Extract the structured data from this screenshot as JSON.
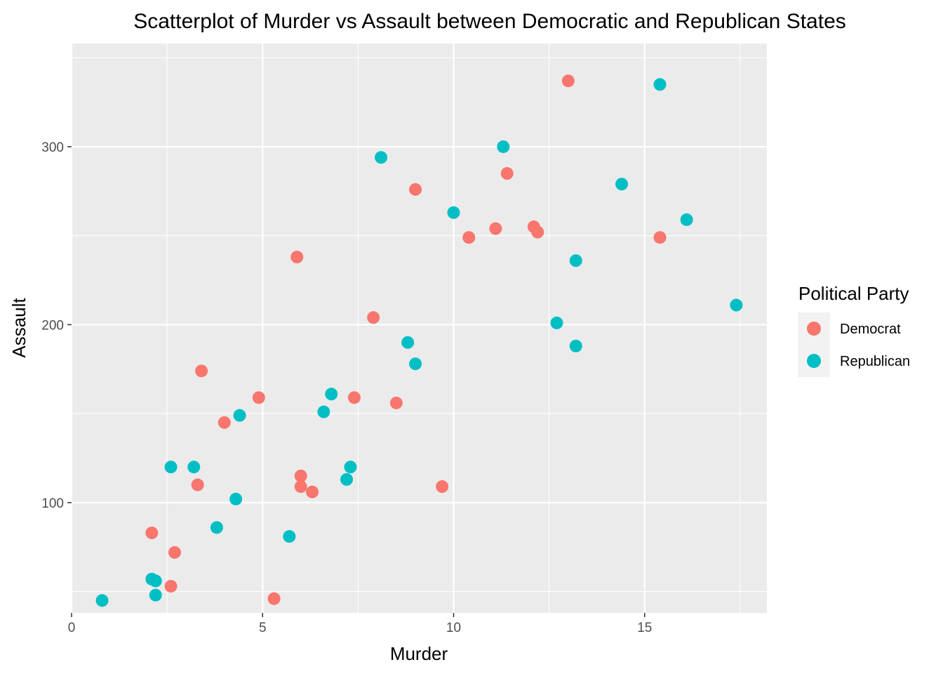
{
  "chart_data": {
    "type": "scatter",
    "title": "Scatterplot of Murder vs Assault between Democratic and Republican States",
    "xlabel": "Murder",
    "ylabel": "Assault",
    "xlim": [
      0,
      18.2
    ],
    "ylim": [
      38,
      358
    ],
    "x_ticks": [
      0,
      5,
      10,
      15
    ],
    "x_tick_labels": [
      "0",
      "5",
      "10",
      "15"
    ],
    "y_ticks": [
      100,
      200,
      300
    ],
    "y_tick_labels": [
      "100",
      "200",
      "300"
    ],
    "grid": true,
    "legend": {
      "title": "Political Party",
      "position": "right"
    },
    "series": [
      {
        "name": "Democrat",
        "color": "#F8766D",
        "points": [
          [
            13.0,
            337
          ],
          [
            11.4,
            285
          ],
          [
            9.0,
            276
          ],
          [
            10.4,
            249
          ],
          [
            11.1,
            254
          ],
          [
            12.1,
            255
          ],
          [
            12.2,
            252
          ],
          [
            15.4,
            249
          ],
          [
            5.9,
            238
          ],
          [
            7.9,
            204
          ],
          [
            3.4,
            174
          ],
          [
            4.9,
            159
          ],
          [
            7.4,
            159
          ],
          [
            8.5,
            156
          ],
          [
            4.0,
            145
          ],
          [
            3.3,
            110
          ],
          [
            6.0,
            115
          ],
          [
            6.0,
            109
          ],
          [
            6.3,
            106
          ],
          [
            9.7,
            109
          ],
          [
            2.1,
            83
          ],
          [
            2.7,
            72
          ],
          [
            2.6,
            53
          ],
          [
            5.3,
            46
          ]
        ]
      },
      {
        "name": "Republican",
        "color": "#00BFC4",
        "points": [
          [
            15.4,
            335
          ],
          [
            11.3,
            300
          ],
          [
            8.1,
            294
          ],
          [
            14.4,
            279
          ],
          [
            10.0,
            263
          ],
          [
            16.1,
            259
          ],
          [
            13.2,
            236
          ],
          [
            17.4,
            211
          ],
          [
            12.7,
            201
          ],
          [
            13.2,
            188
          ],
          [
            8.8,
            190
          ],
          [
            9.0,
            178
          ],
          [
            6.8,
            161
          ],
          [
            6.6,
            151
          ],
          [
            4.4,
            149
          ],
          [
            2.6,
            120
          ],
          [
            3.2,
            120
          ],
          [
            7.3,
            120
          ],
          [
            7.2,
            113
          ],
          [
            4.3,
            102
          ],
          [
            3.8,
            86
          ],
          [
            5.7,
            81
          ],
          [
            2.1,
            57
          ],
          [
            2.2,
            56
          ],
          [
            2.2,
            48
          ],
          [
            0.8,
            45
          ]
        ]
      }
    ]
  }
}
